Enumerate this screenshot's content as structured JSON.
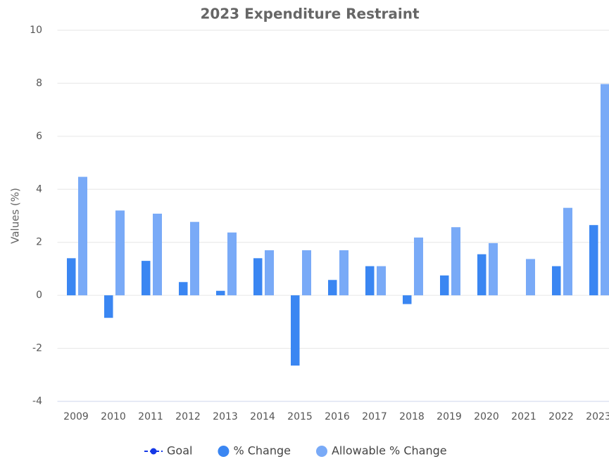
{
  "chart_data": {
    "type": "bar",
    "title": "2023 Expenditure Restraint",
    "y_label": "Values (%)",
    "categories": [
      "2009",
      "2010",
      "2011",
      "2012",
      "2013",
      "2014",
      "2015",
      "2016",
      "2017",
      "2018",
      "2019",
      "2020",
      "2021",
      "2022",
      "2023"
    ],
    "series": [
      {
        "name": "Goal",
        "type": "line",
        "color": "#1538e6",
        "values": [
          null,
          null,
          null,
          null,
          null,
          null,
          null,
          null,
          null,
          null,
          null,
          null,
          null,
          null,
          null
        ]
      },
      {
        "name": "% Change",
        "type": "bar",
        "color": "#3a86f2",
        "values": [
          1.4,
          -0.85,
          1.3,
          0.5,
          0.17,
          1.4,
          -2.65,
          0.58,
          1.1,
          -0.33,
          0.75,
          1.55,
          0,
          1.1,
          2.65
        ]
      },
      {
        "name": "Allowable % Change",
        "type": "bar",
        "color": "#79aaf7",
        "values": [
          4.47,
          3.2,
          3.08,
          2.77,
          2.37,
          1.7,
          1.7,
          1.7,
          1.1,
          2.18,
          2.57,
          1.97,
          1.37,
          3.3,
          7.97
        ]
      }
    ],
    "ylim": [
      -4,
      10
    ],
    "yticks": [
      -4,
      -2,
      0,
      2,
      4,
      6,
      8,
      10
    ],
    "grid": true,
    "legend": "bottom"
  }
}
